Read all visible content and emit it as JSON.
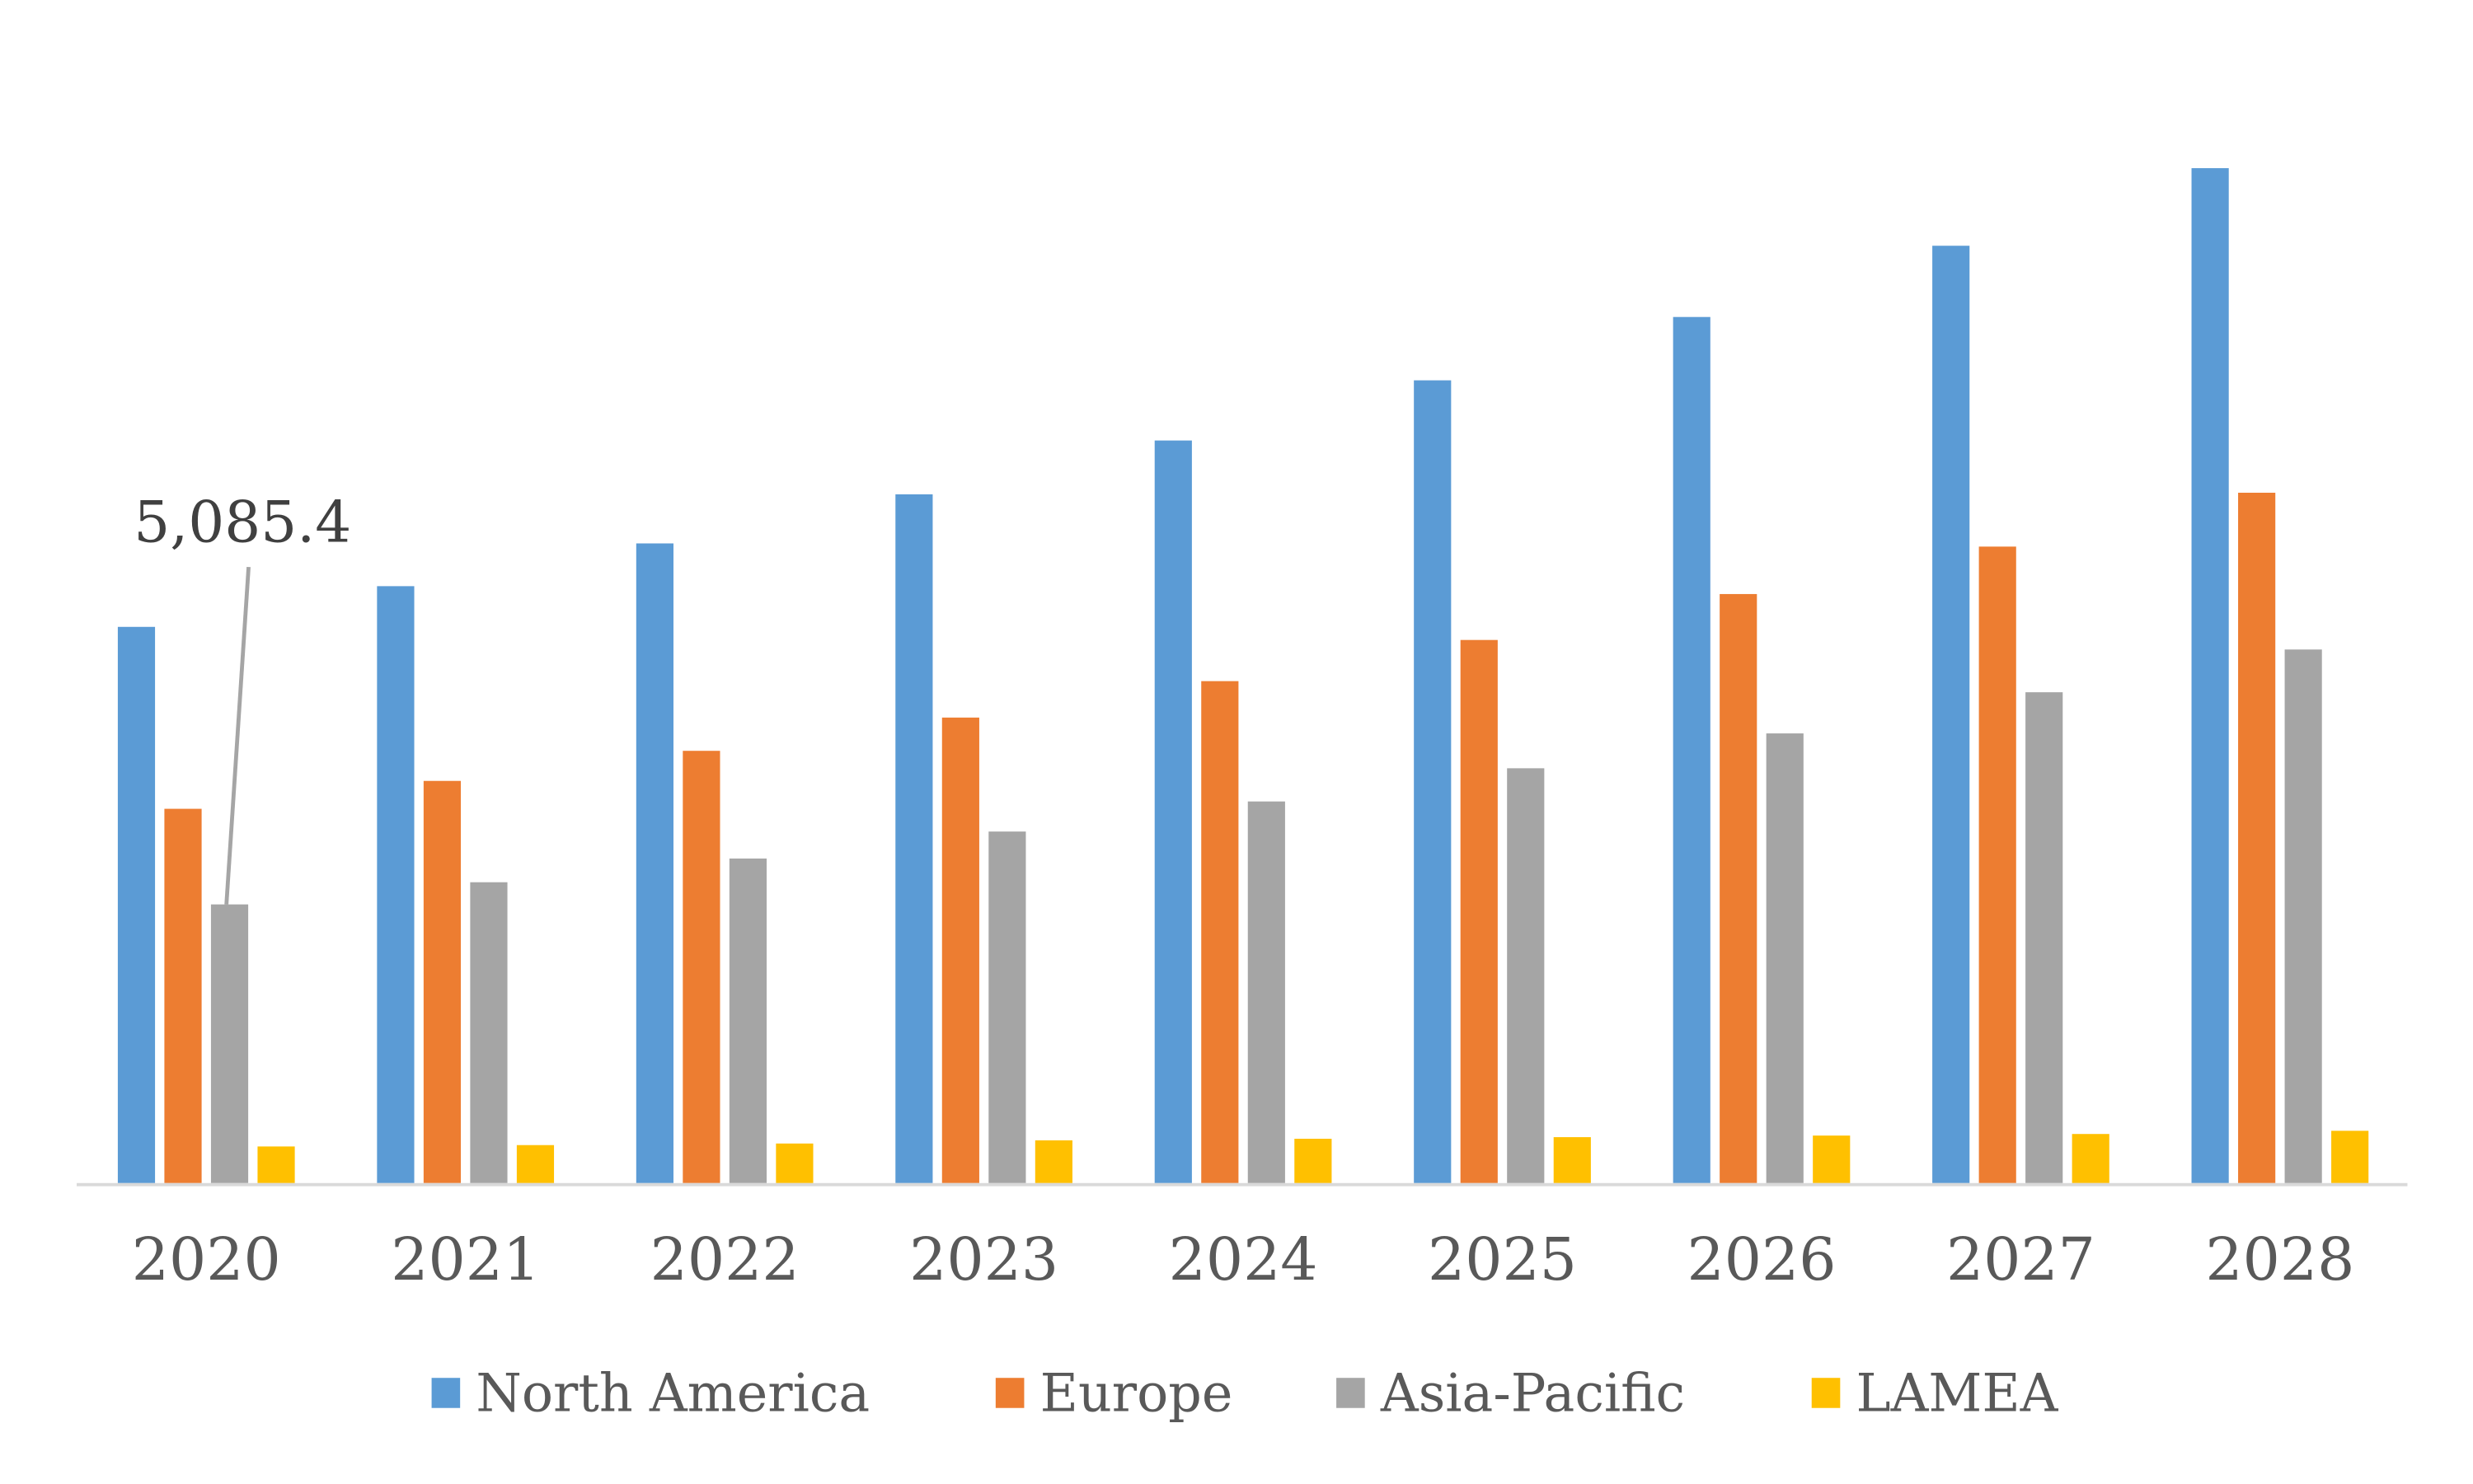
{
  "chart_data": {
    "type": "bar",
    "title": "",
    "xlabel": "",
    "ylabel": "",
    "ylim": [
      0,
      20000
    ],
    "grid": false,
    "legend_position": "bottom",
    "categories": [
      "2020",
      "2021",
      "2022",
      "2023",
      "2024",
      "2025",
      "2026",
      "2027",
      "2028"
    ],
    "series": [
      {
        "name": "North America",
        "color": "#5B9BD5",
        "values": [
          10150,
          10893,
          11673,
          12569,
          13551,
          14649,
          15805,
          17105,
          18521
        ]
      },
      {
        "name": "Europe",
        "color": "#ED7D31",
        "values": [
          6830,
          7339,
          7888,
          8495,
          9160,
          9911,
          10749,
          11615,
          12598
        ]
      },
      {
        "name": "Asia-Pacific",
        "color": "#A5A5A5",
        "values": [
          5085.4,
          5490,
          5923,
          6415,
          6964,
          7570,
          8206,
          8957,
          9737
        ]
      },
      {
        "name": "LAMEA",
        "color": "#FFC000",
        "values": [
          668,
          693,
          722,
          780,
          809,
          838,
          867,
          896,
          954
        ]
      }
    ],
    "annotations": [
      {
        "text": "5,085.4",
        "series": "Asia-Pacific",
        "category": "2020"
      }
    ]
  }
}
